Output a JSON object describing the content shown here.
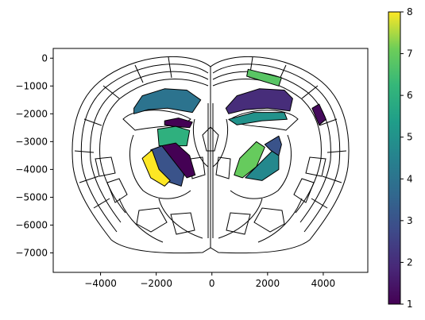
{
  "chart_data": {
    "type": "heatmap",
    "title": "",
    "xlabel": "",
    "ylabel": "",
    "xlim": [
      -5700,
      5600
    ],
    "ylim": [
      -7700,
      350
    ],
    "x_ticks": [
      -4000,
      -2000,
      0,
      2000,
      4000
    ],
    "y_ticks": [
      0,
      -1000,
      -2000,
      -3000,
      -4000,
      -5000,
      -6000,
      -7000
    ],
    "x_tick_labels": [
      "−4000",
      "−2000",
      "0",
      "2000",
      "4000"
    ],
    "y_tick_labels": [
      "0",
      "−1000",
      "−2000",
      "−3000",
      "−4000",
      "−5000",
      "−6000",
      "−7000"
    ],
    "grid": false,
    "colormap": "viridis",
    "colorbar": {
      "range": [
        1,
        8
      ],
      "ticks": [
        1,
        2,
        3,
        4,
        5,
        6,
        7,
        8
      ],
      "tick_labels": [
        "1",
        "2",
        "3",
        "4",
        "5",
        "6",
        "7",
        "8"
      ]
    },
    "regions": [
      {
        "side": "left",
        "value": 4,
        "points": [
          [
            -2800,
            -1800
          ],
          [
            -2500,
            -1350
          ],
          [
            -1700,
            -1100
          ],
          [
            -900,
            -1150
          ],
          [
            -400,
            -1500
          ],
          [
            -700,
            -1950
          ],
          [
            -1600,
            -1800
          ],
          [
            -2300,
            -1850
          ],
          [
            -2800,
            -2000
          ]
        ]
      },
      {
        "side": "left",
        "value": 1,
        "points": [
          [
            -1700,
            -2250
          ],
          [
            -1200,
            -2150
          ],
          [
            -700,
            -2300
          ],
          [
            -800,
            -2500
          ],
          [
            -1400,
            -2450
          ],
          [
            -1700,
            -2400
          ]
        ]
      },
      {
        "side": "left",
        "value": 6,
        "points": [
          [
            -1950,
            -2550
          ],
          [
            -1300,
            -2450
          ],
          [
            -800,
            -2600
          ],
          [
            -900,
            -3150
          ],
          [
            -1900,
            -3150
          ]
        ]
      },
      {
        "side": "left",
        "value": 3,
        "points": [
          [
            -2200,
            -3300
          ],
          [
            -1800,
            -3150
          ],
          [
            -1300,
            -3500
          ],
          [
            -1000,
            -4200
          ],
          [
            -1100,
            -4600
          ],
          [
            -1700,
            -4400
          ],
          [
            -2000,
            -3900
          ]
        ]
      },
      {
        "side": "left",
        "value": 8,
        "points": [
          [
            -2500,
            -3600
          ],
          [
            -2150,
            -3300
          ],
          [
            -1900,
            -4000
          ],
          [
            -1500,
            -4400
          ],
          [
            -1700,
            -4600
          ],
          [
            -2200,
            -4300
          ]
        ]
      },
      {
        "side": "left",
        "value": 1,
        "points": [
          [
            -1800,
            -3150
          ],
          [
            -1300,
            -3050
          ],
          [
            -800,
            -3500
          ],
          [
            -600,
            -4200
          ],
          [
            -900,
            -4300
          ]
        ]
      },
      {
        "side": "right",
        "value": 2,
        "points": [
          [
            500,
            -1800
          ],
          [
            900,
            -1350
          ],
          [
            1700,
            -1100
          ],
          [
            2600,
            -1150
          ],
          [
            2900,
            -1450
          ],
          [
            2800,
            -1900
          ],
          [
            2000,
            -1800
          ],
          [
            1200,
            -1850
          ],
          [
            600,
            -2000
          ]
        ]
      },
      {
        "side": "right",
        "value": 5,
        "points": [
          [
            600,
            -2200
          ],
          [
            1500,
            -1950
          ],
          [
            2600,
            -1950
          ],
          [
            2700,
            -2200
          ],
          [
            1800,
            -2250
          ],
          [
            900,
            -2400
          ]
        ]
      },
      {
        "side": "right",
        "value": 6.8,
        "points": [
          [
            1300,
            -400
          ],
          [
            2500,
            -700
          ],
          [
            2400,
            -1000
          ],
          [
            1250,
            -650
          ]
        ]
      },
      {
        "side": "right",
        "value": 1.2,
        "points": [
          [
            3600,
            -1800
          ],
          [
            3850,
            -1650
          ],
          [
            4100,
            -2200
          ],
          [
            3850,
            -2400
          ]
        ]
      },
      {
        "side": "right",
        "value": 7,
        "points": [
          [
            800,
            -4200
          ],
          [
            1000,
            -3600
          ],
          [
            1600,
            -3000
          ],
          [
            1900,
            -3200
          ],
          [
            1600,
            -3900
          ],
          [
            1100,
            -4300
          ]
        ]
      },
      {
        "side": "right",
        "value": 4.7,
        "points": [
          [
            1200,
            -4300
          ],
          [
            1700,
            -3800
          ],
          [
            2300,
            -3200
          ],
          [
            2400,
            -3500
          ],
          [
            2400,
            -4000
          ],
          [
            1800,
            -4400
          ]
        ]
      },
      {
        "side": "right",
        "value": 3,
        "points": [
          [
            1900,
            -3100
          ],
          [
            2400,
            -2800
          ],
          [
            2500,
            -3100
          ],
          [
            2400,
            -3500
          ],
          [
            2100,
            -3300
          ]
        ]
      }
    ]
  }
}
